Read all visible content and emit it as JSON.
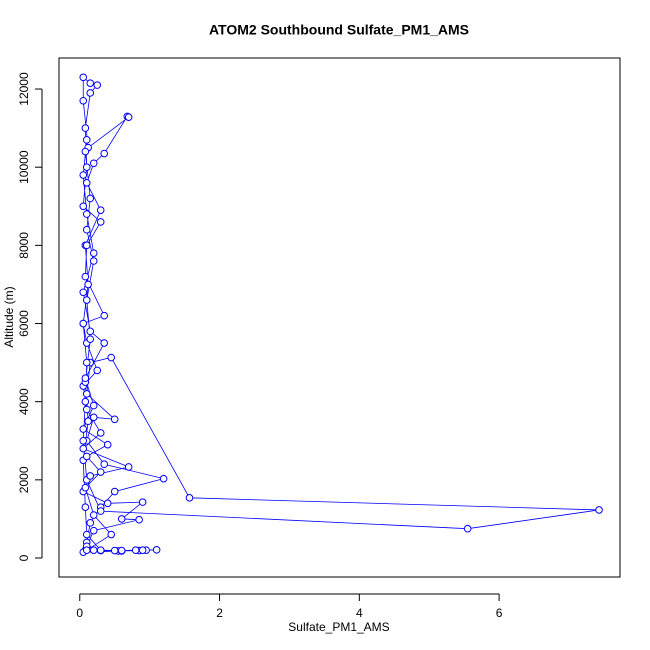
{
  "chart_data": {
    "type": "line",
    "title": "ATOM2 Southbound Sulfate_PM1_AMS",
    "x_label": "Sulfate_PM1_AMS",
    "y_label": "Altitude (m)",
    "color": "#0000ff",
    "xlim": [
      -0.297,
      7.73
    ],
    "ylim": [
      -486,
      12794
    ],
    "xticks": [
      0,
      2,
      4,
      6
    ],
    "yticks": [
      0,
      2000,
      4000,
      6000,
      8000,
      10000,
      12000
    ],
    "x": [
      0.08,
      0.3,
      0.55,
      0.85,
      1.1,
      0.95,
      0.6,
      0.2,
      0.1,
      0.15,
      0.3,
      0.5,
      1.2,
      0.35,
      0.1,
      0.2,
      0.5,
      0.1,
      0.15,
      0.45,
      1.57,
      7.43,
      5.55,
      0.3,
      0.1,
      0.05,
      0.08,
      0.1,
      0.05,
      0.12,
      0.08,
      0.3,
      0.1,
      0.2,
      0.35,
      0.68,
      0.7,
      0.12,
      0.05,
      0.05,
      0.15,
      0.25,
      0.15,
      0.08,
      0.1,
      0.05,
      0.3,
      0.1,
      0.08,
      0.35,
      0.05,
      0.1,
      0.25,
      0.05,
      0.1,
      0.3,
      0.05,
      0.7,
      0.15,
      0.05,
      0.4,
      0.9,
      0.6,
      0.85,
      0.2,
      0.1,
      0.05,
      0.9,
      0.5,
      0.3,
      0.1,
      0.08,
      0.05,
      0.12,
      0.08,
      0.15,
      0.1,
      0.2,
      0.1,
      0.15,
      0.08,
      0.1,
      0.05,
      0.1,
      0.2,
      0.05,
      0.15,
      0.35,
      0.08,
      0.2,
      0.05,
      0.4,
      0.1,
      0.3,
      0.08,
      0.2,
      0.45,
      0.1,
      0.6,
      0.8
    ],
    "values": [
      200,
      190,
      180,
      190,
      210,
      200,
      180,
      200,
      400,
      900,
      1300,
      1700,
      2030,
      2400,
      3000,
      3600,
      3550,
      4200,
      5000,
      5130,
      1540,
      1230,
      750,
      1200,
      2000,
      3000,
      4000,
      5000,
      6000,
      7000,
      8000,
      8900,
      9600,
      10100,
      10350,
      11300,
      11280,
      10500,
      11700,
      12300,
      12150,
      12100,
      11900,
      11000,
      10000,
      9000,
      8600,
      8000,
      7200,
      6200,
      6000,
      5500,
      4800,
      4400,
      3800,
      3200,
      2800,
      2330,
      2100,
      1700,
      1400,
      1430,
      1000,
      980,
      700,
      300,
      150,
      200,
      190,
      200,
      600,
      1300,
      2500,
      3500,
      4500,
      5600,
      6600,
      7600,
      8400,
      9200,
      10400,
      10700,
      9800,
      8800,
      7800,
      6800,
      5800,
      5500,
      4600,
      3900,
      3300,
      2900,
      2600,
      2200,
      1800,
      1100,
      600,
      200,
      190,
      200
    ]
  }
}
